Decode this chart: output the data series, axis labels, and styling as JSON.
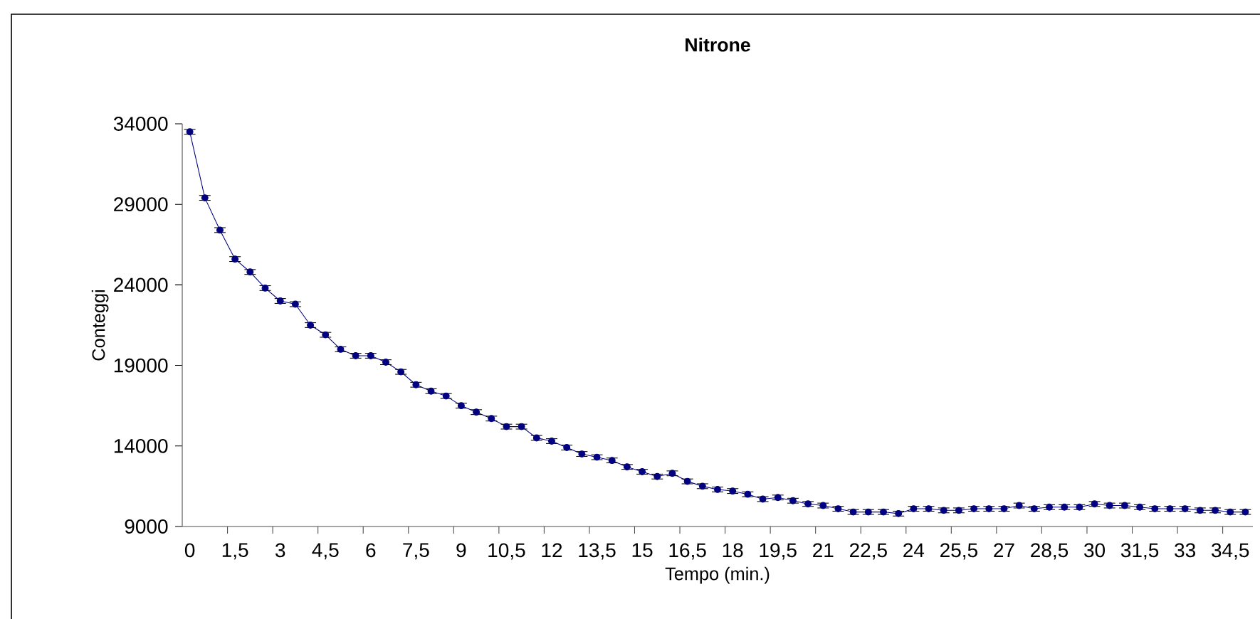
{
  "chart_data": {
    "type": "line",
    "title": "**Nitrone**",
    "xlabel": "Tempo (min.)",
    "ylabel": "Conteggi",
    "categories": [
      "0",
      null,
      null,
      "1,5",
      null,
      null,
      "3",
      null,
      null,
      "4,5",
      null,
      null,
      "6",
      null,
      null,
      "7,5",
      null,
      null,
      "9",
      null,
      null,
      "10,5",
      null,
      null,
      "12",
      null,
      null,
      "13,5",
      null,
      null,
      "15",
      null,
      null,
      "16,5",
      null,
      null,
      "18",
      null,
      null,
      "19,5",
      null,
      null,
      "21",
      null,
      null,
      "22,5",
      null,
      null,
      "24",
      null,
      null,
      "25,5",
      null,
      null,
      "27",
      null,
      null,
      "28,5",
      null,
      null,
      "30",
      null,
      null,
      "31,5",
      null,
      null,
      "33",
      null,
      null,
      "34,5",
      null
    ],
    "values": [
      33500,
      29400,
      27400,
      25600,
      24800,
      23800,
      23000,
      22800,
      21500,
      20900,
      20000,
      19600,
      19600,
      19200,
      18600,
      17800,
      17400,
      17100,
      16500,
      16100,
      15700,
      15200,
      15200,
      14500,
      14300,
      13900,
      13500,
      13300,
      13100,
      12700,
      12400,
      12100,
      12300,
      11800,
      11500,
      11300,
      11200,
      11000,
      10700,
      10800,
      10600,
      10400,
      10300,
      10100,
      9900,
      9900,
      9900,
      9800,
      10100,
      10100,
      10000,
      10000,
      10100,
      10100,
      10100,
      10300,
      10100,
      10200,
      10200,
      10200,
      10400,
      10300,
      10300,
      10200,
      10100,
      10100,
      10100,
      10000,
      10000,
      9900,
      9900
    ],
    "errors": [
      150,
      150,
      150,
      150,
      150,
      150,
      150,
      150,
      150,
      150,
      150,
      150,
      150,
      150,
      150,
      150,
      150,
      150,
      150,
      150,
      150,
      150,
      150,
      150,
      150,
      150,
      150,
      150,
      150,
      150,
      150,
      150,
      150,
      150,
      150,
      150,
      150,
      150,
      150,
      150,
      150,
      150,
      150,
      150,
      150,
      150,
      150,
      150,
      150,
      150,
      150,
      150,
      150,
      150,
      150,
      150,
      150,
      150,
      150,
      150,
      150,
      150,
      150,
      150,
      150,
      150,
      150,
      150,
      150,
      150,
      150
    ],
    "color": "#000080",
    "marker": "circle",
    "line_style": "solid",
    "grid": false,
    "ylim": [
      9000,
      34000
    ],
    "yticks": [
      9000,
      14000,
      19000,
      24000,
      29000,
      34000
    ]
  }
}
